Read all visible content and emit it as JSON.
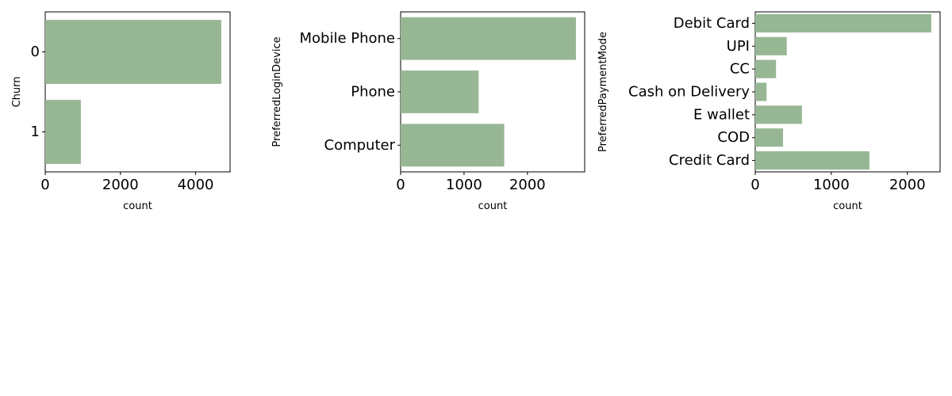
{
  "style": {
    "bar_color": "#97b794"
  },
  "chart_data": [
    {
      "type": "bar",
      "orientation": "horizontal",
      "xlabel": "count",
      "ylabel": "Churn",
      "categories": [
        "0",
        "1"
      ],
      "values": [
        4682,
        948
      ],
      "xlim": [
        0,
        4916
      ],
      "xticks": [
        "0",
        "2000",
        "4000"
      ]
    },
    {
      "type": "bar",
      "orientation": "horizontal",
      "xlabel": "count",
      "ylabel": "PreferredLoginDevice",
      "categories": [
        "Mobile Phone",
        "Phone",
        "Computer"
      ],
      "values": [
        2765,
        1231,
        1634
      ],
      "xlim": [
        0,
        2903
      ],
      "xticks": [
        "0",
        "1000",
        "2000"
      ]
    },
    {
      "type": "bar",
      "orientation": "horizontal",
      "xlabel": "count",
      "ylabel": "PreferredPaymentMode",
      "categories": [
        "Debit Card",
        "UPI",
        "CC",
        "Cash on Delivery",
        "E wallet",
        "COD",
        "Credit Card"
      ],
      "values": [
        2314,
        414,
        273,
        149,
        614,
        365,
        1501
      ],
      "xlim": [
        0,
        2430
      ],
      "xticks": [
        "0",
        "1000",
        "2000"
      ]
    }
  ]
}
